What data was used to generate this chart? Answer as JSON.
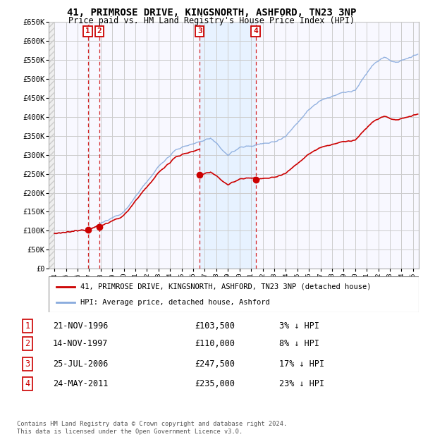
{
  "title": "41, PRIMROSE DRIVE, KINGSNORTH, ASHFORD, TN23 3NP",
  "subtitle": "Price paid vs. HM Land Registry's House Price Index (HPI)",
  "ylim": [
    0,
    650000
  ],
  "yticks": [
    0,
    50000,
    100000,
    150000,
    200000,
    250000,
    300000,
    350000,
    400000,
    450000,
    500000,
    550000,
    600000,
    650000
  ],
  "ytick_labels": [
    "£0",
    "£50K",
    "£100K",
    "£150K",
    "£200K",
    "£250K",
    "£300K",
    "£350K",
    "£400K",
    "£450K",
    "£500K",
    "£550K",
    "£600K",
    "£650K"
  ],
  "xtick_years": [
    1994,
    1995,
    1996,
    1997,
    1998,
    1999,
    2000,
    2001,
    2002,
    2003,
    2004,
    2005,
    2006,
    2007,
    2008,
    2009,
    2010,
    2011,
    2012,
    2013,
    2014,
    2015,
    2016,
    2017,
    2018,
    2019,
    2020,
    2021,
    2022,
    2023,
    2024,
    2025
  ],
  "xlim": [
    1993.5,
    2025.5
  ],
  "transactions": [
    {
      "num": 1,
      "date_str": "21-NOV-1996",
      "date_x": 1996.89,
      "price": 103500,
      "pct_str": "3% ↓ HPI"
    },
    {
      "num": 2,
      "date_str": "14-NOV-1997",
      "date_x": 1997.87,
      "price": 110000,
      "pct_str": "8% ↓ HPI"
    },
    {
      "num": 3,
      "date_str": "25-JUL-2006",
      "date_x": 2006.56,
      "price": 247500,
      "pct_str": "17% ↓ HPI"
    },
    {
      "num": 4,
      "date_str": "24-MAY-2011",
      "date_x": 2011.39,
      "price": 235000,
      "pct_str": "23% ↓ HPI"
    }
  ],
  "legend_line1": "41, PRIMROSE DRIVE, KINGSNORTH, ASHFORD, TN23 3NP (detached house)",
  "legend_line2": "HPI: Average price, detached house, Ashford",
  "footer": "Contains HM Land Registry data © Crown copyright and database right 2024.\nThis data is licensed under the Open Government Licence v3.0.",
  "property_line_color": "#cc0000",
  "hpi_line_color": "#88aadd",
  "hpi_fill_color": "#dde8f5",
  "bg_plot_color": "#f8f8ff",
  "hatch_color": "#dddddd",
  "grid_color": "#cccccc",
  "transaction_color": "#cc0000",
  "highlight_fill": "#ddeeff",
  "title_fontsize": 10,
  "subtitle_fontsize": 8.5
}
